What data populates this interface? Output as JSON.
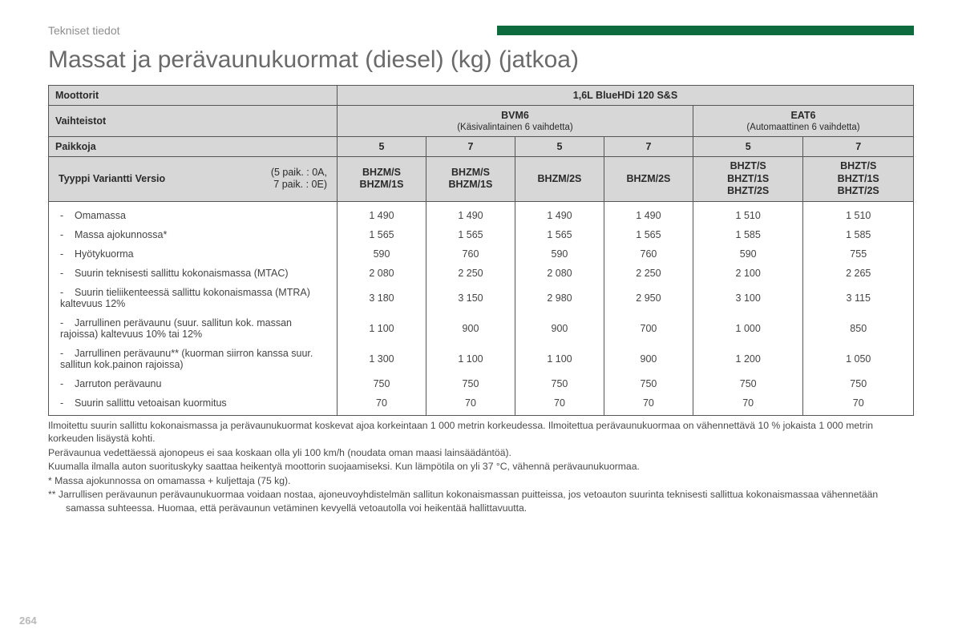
{
  "section_label": "Tekniset tiedot",
  "page_title": "Massat ja perävaunukuormat (diesel) (kg) (jatkoa)",
  "page_number": "264",
  "headers": {
    "moottorit_label": "Moottorit",
    "engine": "1,6L BlueHDi 120 S&S",
    "vaihteistot_label": "Vaihteistot",
    "bvm6": "BVM6",
    "bvm6_sub": "(Käsivalintainen 6 vaihdetta)",
    "eat6": "EAT6",
    "eat6_sub": "(Automaattinen 6 vaihdetta)",
    "paikkoja_label": "Paikkoja",
    "seats": [
      "5",
      "7",
      "5",
      "7",
      "5",
      "7"
    ],
    "type_label_left": "Tyyppi Variantti Versio",
    "type_label_right": "(5 paik. : 0A,\n7 paik. : 0E)",
    "type_codes": [
      "BHZM/S\nBHZM/1S",
      "BHZM/S\nBHZM/1S",
      "BHZM/2S",
      "BHZM/2S",
      "BHZT/S\nBHZT/1S\nBHZT/2S",
      "BHZT/S\nBHZT/1S\nBHZT/2S"
    ]
  },
  "rows": [
    {
      "label": "Omamassa",
      "v": [
        "1 490",
        "1 490",
        "1 490",
        "1 490",
        "1 510",
        "1 510"
      ]
    },
    {
      "label": "Massa ajokunnossa*",
      "v": [
        "1 565",
        "1 565",
        "1 565",
        "1 565",
        "1 585",
        "1 585"
      ]
    },
    {
      "label": "Hyötykuorma",
      "v": [
        "590",
        "760",
        "590",
        "760",
        "590",
        "755"
      ]
    },
    {
      "label": "Suurin teknisesti sallittu kokonaismassa (MTAC)",
      "v": [
        "2 080",
        "2 250",
        "2 080",
        "2 250",
        "2 100",
        "2 265"
      ]
    },
    {
      "label": "Suurin tieliikenteessä sallittu kokonaismassa (MTRA) kaltevuus 12%",
      "v": [
        "3 180",
        "3 150",
        "2 980",
        "2 950",
        "3 100",
        "3 115"
      ]
    },
    {
      "label": "Jarrullinen perävaunu (suur. sallitun kok. massan rajoissa) kaltevuus 10% tai 12%",
      "v": [
        "1 100",
        "900",
        "900",
        "700",
        "1 000",
        "850"
      ]
    },
    {
      "label": "Jarrullinen perävaunu** (kuorman siirron kanssa suur. sallitun kok.painon rajoissa)",
      "v": [
        "1 300",
        "1 100",
        "1 100",
        "900",
        "1 200",
        "1 050"
      ]
    },
    {
      "label": "Jarruton perävaunu",
      "v": [
        "750",
        "750",
        "750",
        "750",
        "750",
        "750"
      ]
    },
    {
      "label": "Suurin sallittu vetoaisan kuormitus",
      "v": [
        "70",
        "70",
        "70",
        "70",
        "70",
        "70"
      ]
    }
  ],
  "footnotes": [
    "Ilmoitettu suurin sallittu kokonaismassa ja perävaunukuormat koskevat ajoa korkeintaan 1 000 metrin korkeudessa. Ilmoitettua perävaunukuormaa on vähennettävä 10 % jokaista 1 000 metrin korkeuden lisäystä kohti.",
    "Perävaunua vedettäessä ajonopeus ei saa koskaan olla yli 100 km/h (noudata oman maasi lainsäädäntöä).",
    "Kuumalla ilmalla auton suorituskyky saattaa heikentyä moottorin suojaamiseksi. Kun lämpötila on yli 37 °C, vähennä perävaunukuormaa.",
    "* Massa ajokunnossa on omamassa + kuljettaja (75 kg).",
    "** Jarrullisen perävaunun perävaunukuormaa voidaan nostaa, ajoneuvoyhdistelmän sallitun kokonaismassan puitteissa, jos vetoauton suurinta teknisesti sallittua kokonaismassaa vähennetään samassa suhteessa. Huomaa, että perävaunun vetäminen kevyellä vetoautolla voi heikentää hallittavuutta."
  ],
  "colors": {
    "green": "#0d6b3e",
    "hdr_bg": "#d7d7d7",
    "text": "#3a3a3a"
  }
}
